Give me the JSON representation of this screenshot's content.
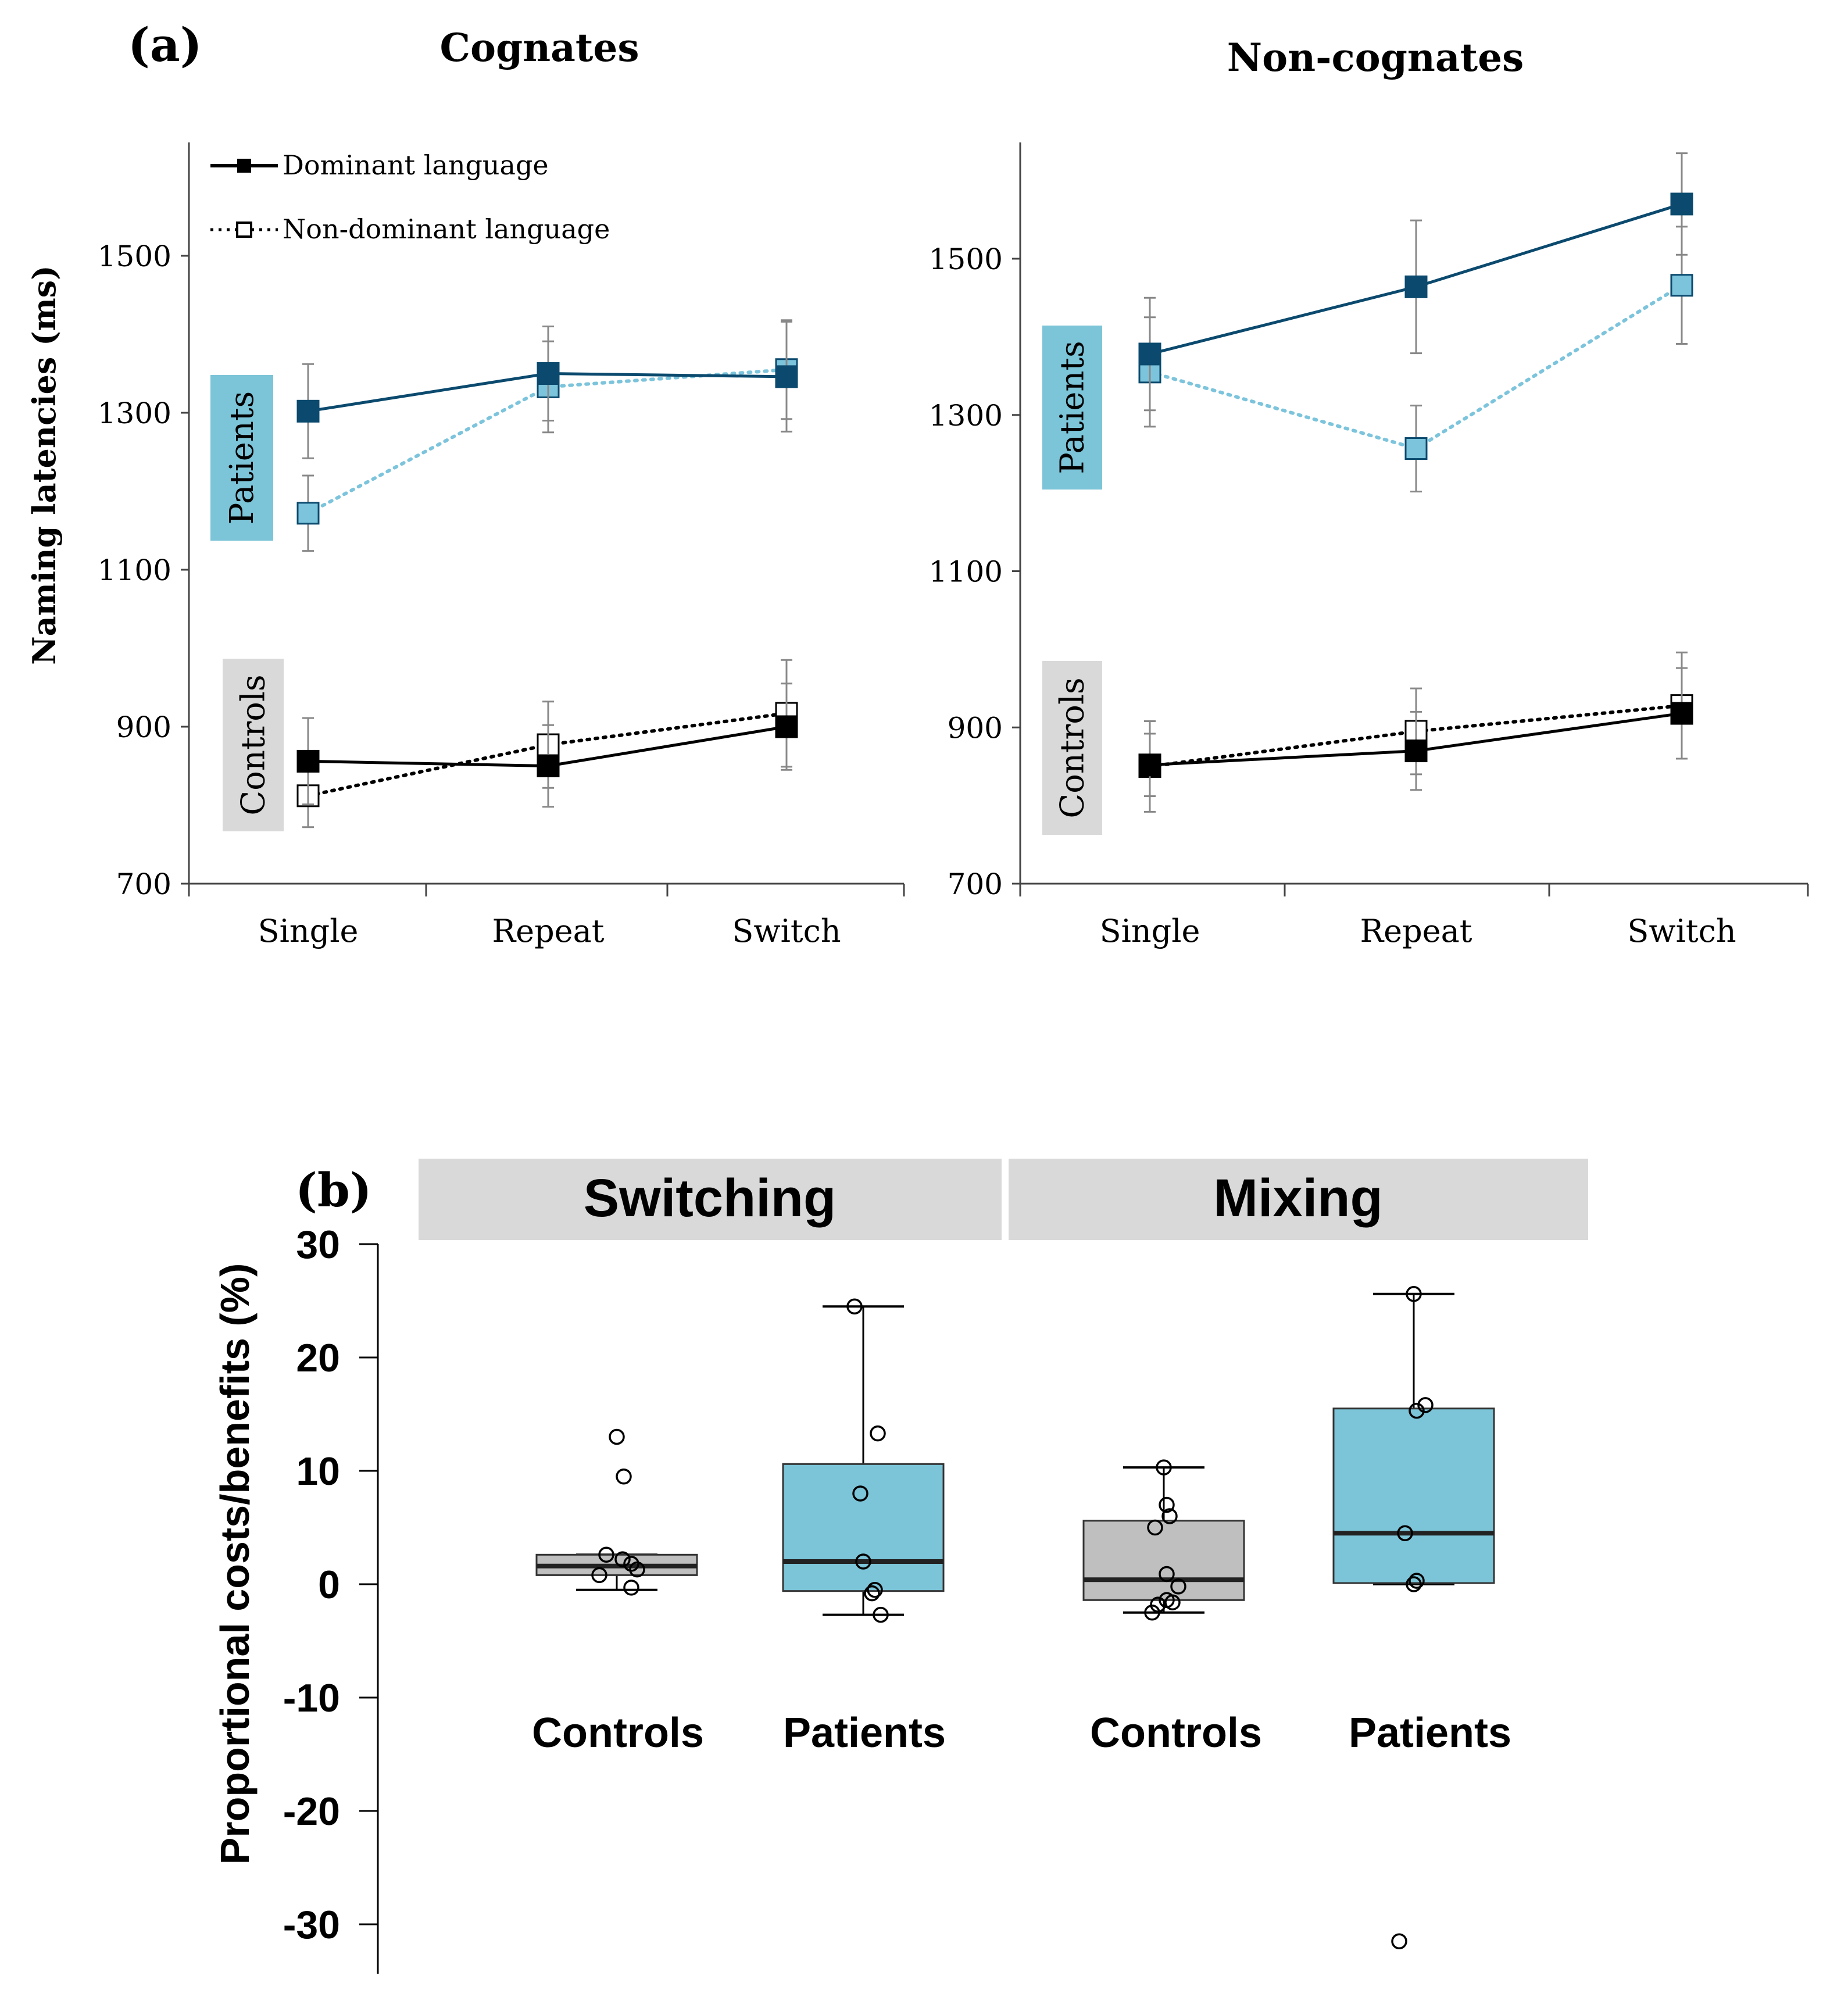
{
  "panel_a_label": "(a)",
  "panel_b_label": "(b)",
  "colors": {
    "patients_dominant": "#0b4a6e",
    "patients_nondominant": "#7cc4dc",
    "patients_box": "#7cc4d8",
    "patients_tag": "#7cc4d8",
    "controls_tag": "#d9d9d9",
    "controls_box": "#bfbfbf",
    "black": "#000000"
  },
  "chart_data": [
    {
      "id": "cognates",
      "type": "line",
      "title": "Cognates",
      "xlabel": "",
      "ylabel": "Naming latencies  (ms)",
      "categories": [
        "Single",
        "Repeat",
        "Switch"
      ],
      "yticks": [
        700,
        900,
        1100,
        1300,
        1500
      ],
      "ylim": [
        700,
        1650
      ],
      "legend": {
        "placement": "top-left",
        "items": [
          {
            "label": "Dominant language",
            "style": "solid",
            "marker": "filled-square"
          },
          {
            "label": "Non-dominant language",
            "style": "dotted",
            "marker": "open-square"
          }
        ]
      },
      "group_labels": [
        "Patients",
        "Controls"
      ],
      "series": [
        {
          "name": "Patients - Dominant language",
          "group": "Patients",
          "style": "solid",
          "values": [
            1302,
            1350,
            1346
          ],
          "errors": [
            60,
            60,
            70
          ]
        },
        {
          "name": "Patients - Non-dominant language",
          "group": "Patients",
          "style": "dotted",
          "values": [
            1172,
            1333,
            1355
          ],
          "errors": [
            48,
            58,
            63
          ]
        },
        {
          "name": "Controls - Dominant language",
          "group": "Controls",
          "style": "solid",
          "values": [
            856,
            850,
            900
          ],
          "errors": [
            55,
            52,
            55
          ]
        },
        {
          "name": "Controls - Non-dominant language",
          "group": "Controls",
          "style": "dotted",
          "values": [
            812,
            877,
            917
          ],
          "errors": [
            40,
            55,
            68
          ]
        }
      ]
    },
    {
      "id": "noncognates",
      "type": "line",
      "title": "Non-cognates",
      "xlabel": "",
      "ylabel": "",
      "categories": [
        "Single",
        "Repeat",
        "Switch"
      ],
      "yticks": [
        700,
        900,
        1100,
        1300,
        1500
      ],
      "ylim": [
        700,
        1650
      ],
      "group_labels": [
        "Patients",
        "Controls"
      ],
      "series": [
        {
          "name": "Patients - Dominant language",
          "group": "Patients",
          "style": "solid",
          "values": [
            1378,
            1464,
            1570
          ],
          "errors": [
            72,
            85,
            65
          ]
        },
        {
          "name": "Patients - Non-dominant language",
          "group": "Patients",
          "style": "dotted",
          "values": [
            1355,
            1257,
            1466
          ],
          "errors": [
            70,
            55,
            75
          ]
        },
        {
          "name": "Controls - Dominant language",
          "group": "Controls",
          "style": "solid",
          "values": [
            852,
            870,
            918
          ],
          "errors": [
            40,
            50,
            58
          ]
        },
        {
          "name": "Controls - Non-dominant language",
          "group": "Controls",
          "style": "dotted",
          "values": [
            850,
            895,
            928
          ],
          "errors": [
            58,
            55,
            68
          ]
        }
      ]
    },
    {
      "id": "costs",
      "type": "box",
      "title": "",
      "xlabel": "",
      "ylabel": "Proportional costs/benefits (%)",
      "yticks": [
        -30,
        -20,
        -10,
        0,
        10,
        20,
        30
      ],
      "ylim": [
        -34,
        30
      ],
      "facets": [
        "Switching",
        "Mixing"
      ],
      "categories": [
        "Controls",
        "Patients",
        "Controls",
        "Patients"
      ],
      "boxes": [
        {
          "facet": "Switching",
          "group": "Controls",
          "whisker_low": -0.5,
          "q1": 0.8,
          "median": 1.6,
          "q3": 2.6,
          "whisker_high": 2.6,
          "points": [
            13.0,
            9.5,
            2.6,
            2.2,
            0.8,
            1.3,
            1.8,
            -0.3
          ]
        },
        {
          "facet": "Switching",
          "group": "Patients",
          "whisker_low": -2.7,
          "q1": -0.6,
          "median": 2.0,
          "q3": 10.6,
          "whisker_high": 24.5,
          "points": [
            24.5,
            13.3,
            8.0,
            2.0,
            -0.5,
            -0.8,
            -2.7
          ]
        },
        {
          "facet": "Mixing",
          "group": "Controls",
          "whisker_low": -2.5,
          "q1": -1.4,
          "median": 0.4,
          "q3": 5.6,
          "whisker_high": 10.3,
          "points": [
            10.3,
            7.0,
            6.0,
            5.0,
            0.9,
            -0.2,
            -1.4,
            -1.6,
            -1.8,
            -2.5
          ]
        },
        {
          "facet": "Mixing",
          "group": "Patients",
          "whisker_low": 0.0,
          "q1": 0.1,
          "median": 4.5,
          "q3": 15.5,
          "whisker_high": 25.6,
          "points": [
            25.6,
            15.8,
            15.3,
            4.5,
            0.3,
            0.0,
            -31.5
          ]
        }
      ]
    }
  ]
}
